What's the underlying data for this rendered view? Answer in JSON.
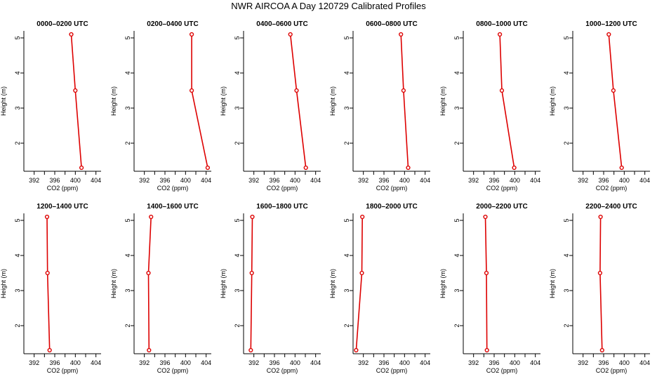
{
  "figure": {
    "title": "NWR AIRCOA A  Day 120729  Calibrated Profiles"
  },
  "style": {
    "series_color": "#dd0000",
    "axis_color": "#000000",
    "background": "#ffffff"
  },
  "chart_data": {
    "type": "line",
    "layout": "2x6 grid of small multiples",
    "xlabel": "CO2 (ppm)",
    "ylabel": "Height (m)",
    "xlim": [
      390,
      405
    ],
    "ylim": [
      1.2,
      5.2
    ],
    "xticks": [
      392,
      396,
      400,
      404
    ],
    "xminor": [
      394,
      398,
      402
    ],
    "yticks": [
      2,
      3,
      4,
      5
    ],
    "heights": [
      5.1,
      3.5,
      1.3
    ],
    "panels": [
      {
        "title": "0000–0200 UTC",
        "co2": [
          399.2,
          400.0,
          401.2
        ]
      },
      {
        "title": "0200–0400 UTC",
        "co2": [
          401.2,
          401.2,
          404.3
        ]
      },
      {
        "title": "0400–0600 UTC",
        "co2": [
          399.1,
          400.3,
          402.1
        ]
      },
      {
        "title": "0600–0800 UTC",
        "co2": [
          399.3,
          399.8,
          400.7
        ]
      },
      {
        "title": "0800–1000 UTC",
        "co2": [
          397.1,
          397.5,
          399.9
        ]
      },
      {
        "title": "1000–1200 UTC",
        "co2": [
          397.0,
          397.9,
          399.5
        ]
      },
      {
        "title": "1200–1400 UTC",
        "co2": [
          394.5,
          394.6,
          395.0
        ]
      },
      {
        "title": "1400–1600 UTC",
        "co2": [
          393.3,
          392.8,
          392.9
        ]
      },
      {
        "title": "1600–1800 UTC",
        "co2": [
          391.7,
          391.6,
          391.4
        ]
      },
      {
        "title": "1800–2000 UTC",
        "co2": [
          391.8,
          391.7,
          390.6
        ]
      },
      {
        "title": "2000–2200 UTC",
        "co2": [
          394.3,
          394.5,
          394.6
        ]
      },
      {
        "title": "2200–2400 UTC",
        "co2": [
          395.4,
          395.3,
          395.7
        ]
      }
    ]
  }
}
